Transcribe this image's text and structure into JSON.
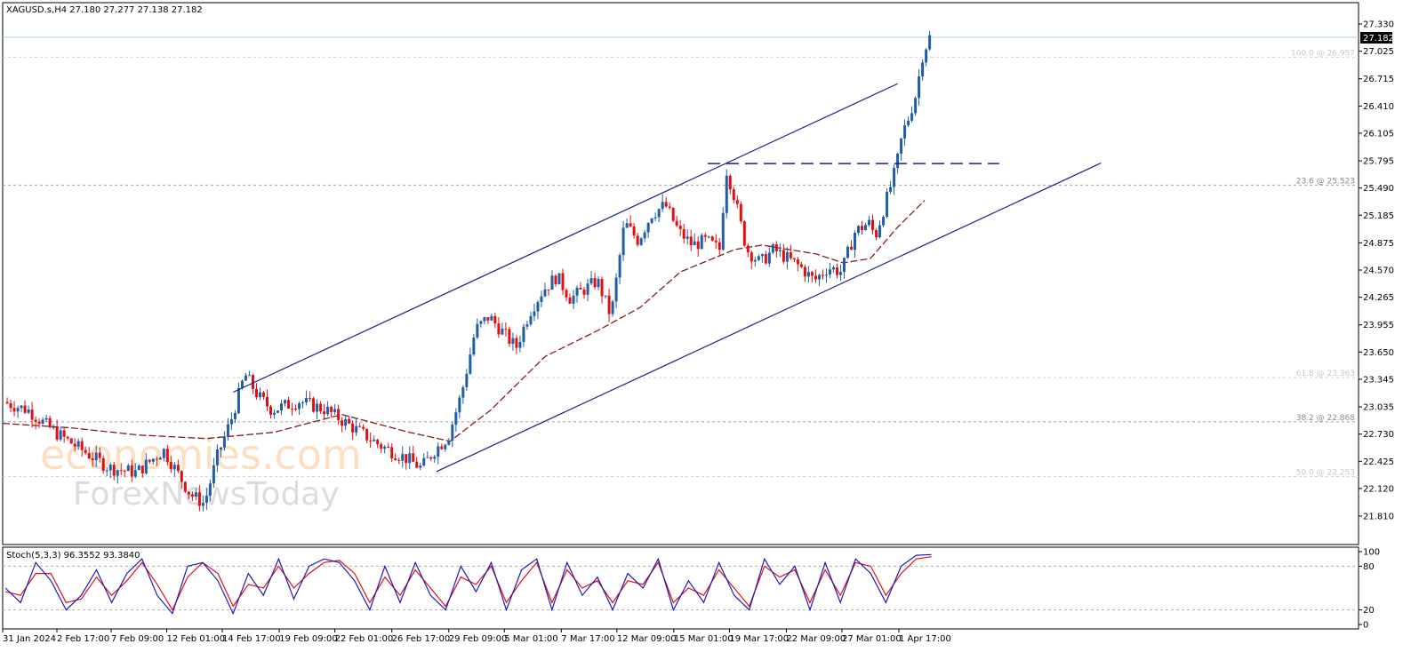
{
  "symbol_header": "XAGUSD.s,H4  27.180 27.277 27.138 27.182",
  "current_price_label": "27.182",
  "stoch_header": "Stoch(5,3,3) 96.3552 93.3840",
  "watermark": {
    "line1": "economies.com",
    "line2": "ForexNewsToday"
  },
  "colors": {
    "bull": "#1f5fa8",
    "bear": "#e01010",
    "ma": "#8b1a1a",
    "channel": "#1c1c8c",
    "stoch_main": "#1c1cb8",
    "stoch_signal": "#e01010"
  },
  "chart_data": {
    "type": "candlestick",
    "y_ticks": [
      "27.330",
      "27.025",
      "26.715",
      "26.410",
      "26.105",
      "25.795",
      "25.490",
      "25.185",
      "24.875",
      "24.570",
      "24.265",
      "23.955",
      "23.650",
      "23.345",
      "23.035",
      "22.730",
      "22.425",
      "22.120",
      "21.810"
    ],
    "ylim": [
      21.81,
      27.33
    ],
    "x_ticks": [
      "31 Jan 2024",
      "2 Feb 17:00",
      "7 Feb 09:00",
      "12 Feb 01:00",
      "14 Feb 17:00",
      "19 Feb 09:00",
      "22 Feb 01:00",
      "26 Feb 17:00",
      "29 Feb 09:00",
      "5 Mar 01:00",
      "7 Mar 17:00",
      "12 Mar 09:00",
      "15 Mar 01:00",
      "19 Mar 17:00",
      "22 Mar 09:00",
      "27 Mar 01:00",
      "1 Apr 17:00"
    ],
    "fibo_levels": [
      {
        "label": "100.0 @ 26.957",
        "price": 26.957
      },
      {
        "label": "23.6 @ 25.523",
        "price": 25.523
      },
      {
        "label": "61.8 @ 23.363",
        "price": 23.363
      },
      {
        "label": "38.2 @ 22.868",
        "price": 22.868
      },
      {
        "label": "50.0 @ 22.253",
        "price": 22.253
      }
    ],
    "current_price": 27.182,
    "horizontal_resistance": 25.765,
    "channel": {
      "upper": [
        [
          0.17,
          23.2
        ],
        [
          0.66,
          26.66
        ]
      ],
      "lower": [
        [
          0.32,
          22.31
        ],
        [
          0.81,
          25.77
        ]
      ]
    },
    "close_path": [
      [
        0,
        23.1
      ],
      [
        0.02,
        23.0
      ],
      [
        0.04,
        22.75
      ],
      [
        0.06,
        22.55
      ],
      [
        0.08,
        22.35
      ],
      [
        0.1,
        22.3
      ],
      [
        0.12,
        22.55
      ],
      [
        0.14,
        22.05
      ],
      [
        0.15,
        21.95
      ],
      [
        0.16,
        22.5
      ],
      [
        0.17,
        22.9
      ],
      [
        0.18,
        23.4
      ],
      [
        0.19,
        23.15
      ],
      [
        0.2,
        23.0
      ],
      [
        0.22,
        23.1
      ],
      [
        0.24,
        23.0
      ],
      [
        0.26,
        22.8
      ],
      [
        0.28,
        22.6
      ],
      [
        0.3,
        22.45
      ],
      [
        0.31,
        22.35
      ],
      [
        0.32,
        22.55
      ],
      [
        0.33,
        22.7
      ],
      [
        0.34,
        23.2
      ],
      [
        0.35,
        23.9
      ],
      [
        0.36,
        24.05
      ],
      [
        0.38,
        23.7
      ],
      [
        0.39,
        24.1
      ],
      [
        0.4,
        24.35
      ],
      [
        0.41,
        24.5
      ],
      [
        0.42,
        24.25
      ],
      [
        0.43,
        24.35
      ],
      [
        0.44,
        24.45
      ],
      [
        0.45,
        24.05
      ],
      [
        0.46,
        25.1
      ],
      [
        0.47,
        24.9
      ],
      [
        0.48,
        25.2
      ],
      [
        0.49,
        25.3
      ],
      [
        0.5,
        25.0
      ],
      [
        0.51,
        24.85
      ],
      [
        0.52,
        24.9
      ],
      [
        0.53,
        24.8
      ],
      [
        0.535,
        25.7
      ],
      [
        0.54,
        25.45
      ],
      [
        0.55,
        24.8
      ],
      [
        0.56,
        24.65
      ],
      [
        0.57,
        24.8
      ],
      [
        0.58,
        24.7
      ],
      [
        0.59,
        24.6
      ],
      [
        0.6,
        24.45
      ],
      [
        0.61,
        24.6
      ],
      [
        0.62,
        24.55
      ],
      [
        0.63,
        25.0
      ],
      [
        0.64,
        25.1
      ],
      [
        0.645,
        24.95
      ],
      [
        0.65,
        25.2
      ],
      [
        0.66,
        25.7
      ],
      [
        0.665,
        26.1
      ],
      [
        0.67,
        26.3
      ],
      [
        0.675,
        26.55
      ],
      [
        0.68,
        27.0
      ],
      [
        0.685,
        27.18
      ]
    ],
    "ma_path": [
      [
        0,
        22.85
      ],
      [
        0.05,
        22.8
      ],
      [
        0.1,
        22.72
      ],
      [
        0.15,
        22.68
      ],
      [
        0.2,
        22.75
      ],
      [
        0.25,
        22.95
      ],
      [
        0.3,
        22.75
      ],
      [
        0.33,
        22.65
      ],
      [
        0.36,
        23.0
      ],
      [
        0.4,
        23.6
      ],
      [
        0.44,
        23.9
      ],
      [
        0.47,
        24.15
      ],
      [
        0.5,
        24.55
      ],
      [
        0.54,
        24.8
      ],
      [
        0.56,
        24.85
      ],
      [
        0.6,
        24.75
      ],
      [
        0.62,
        24.65
      ],
      [
        0.64,
        24.7
      ],
      [
        0.66,
        25.05
      ],
      [
        0.68,
        25.35
      ]
    ],
    "stoch_ylim": [
      0,
      100
    ],
    "stoch_ticks": [
      "100",
      "80",
      "20",
      "0"
    ],
    "stoch_levels": [
      80,
      20
    ],
    "stoch_main": [
      50,
      30,
      85,
      60,
      20,
      40,
      75,
      30,
      70,
      90,
      40,
      15,
      80,
      85,
      60,
      15,
      70,
      40,
      90,
      35,
      80,
      90,
      85,
      60,
      20,
      80,
      30,
      85,
      40,
      20,
      80,
      45,
      85,
      20,
      75,
      90,
      20,
      85,
      40,
      65,
      20,
      70,
      50,
      90,
      20,
      60,
      30,
      85,
      40,
      20,
      90,
      55,
      80,
      20,
      85,
      30,
      90,
      70,
      30,
      80,
      95,
      96
    ],
    "stoch_signal": [
      45,
      40,
      70,
      70,
      30,
      35,
      65,
      40,
      60,
      85,
      55,
      20,
      65,
      85,
      70,
      25,
      55,
      50,
      80,
      50,
      70,
      85,
      88,
      70,
      30,
      65,
      40,
      75,
      50,
      25,
      65,
      55,
      80,
      30,
      60,
      85,
      30,
      75,
      50,
      60,
      30,
      60,
      55,
      85,
      30,
      50,
      40,
      75,
      50,
      25,
      80,
      65,
      75,
      30,
      75,
      40,
      85,
      80,
      40,
      70,
      90,
      93
    ]
  }
}
